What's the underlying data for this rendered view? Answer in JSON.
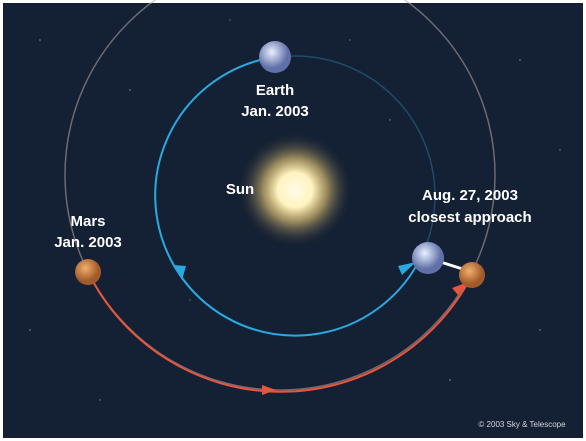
{
  "labels": {
    "earth": "Earth",
    "earth_date": "Jan. 2003",
    "sun": "Sun",
    "mars": "Mars",
    "mars_date": "Jan. 2003",
    "approach_date": "Aug. 27, 2003",
    "approach": "closest approach",
    "credit": "© 2003 Sky & Telescope"
  }
}
